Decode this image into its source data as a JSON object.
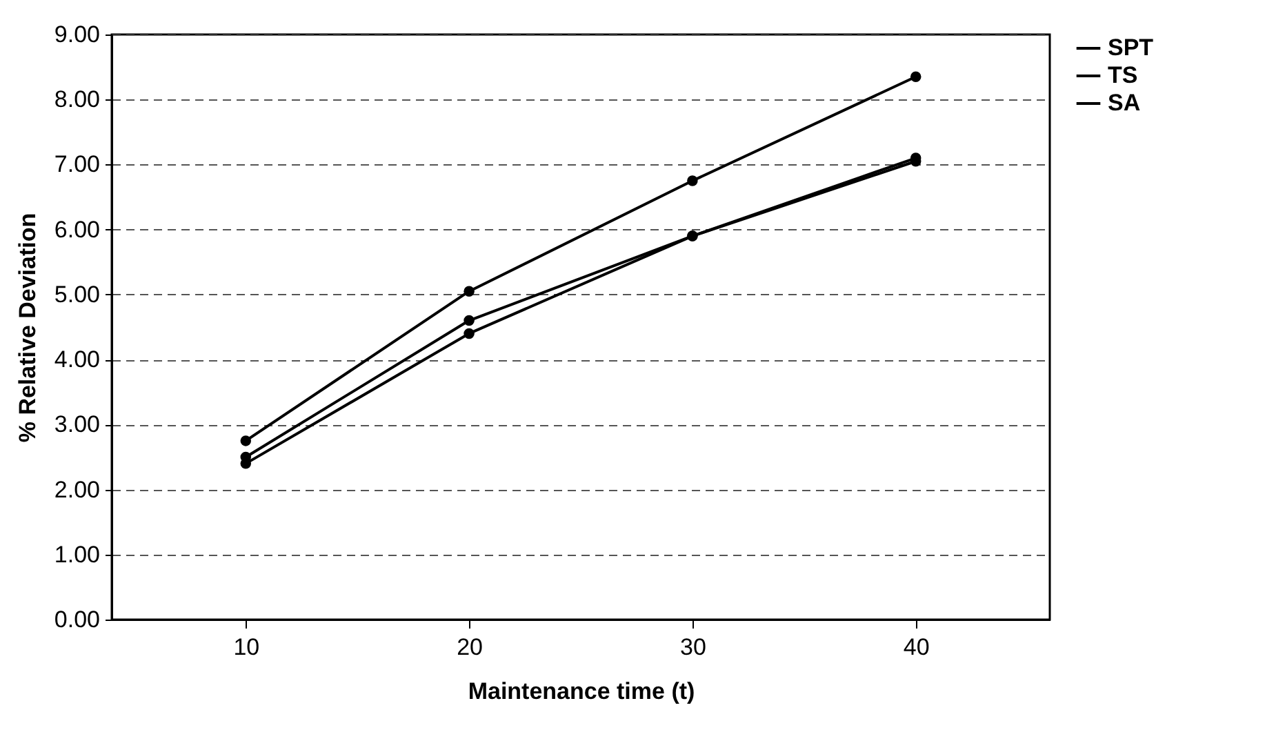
{
  "chart_data": {
    "type": "line",
    "xlabel": "Maintenance time (t)",
    "ylabel": "% Relative Deviation",
    "x": [
      10,
      20,
      30,
      40
    ],
    "xlim": [
      4,
      46
    ],
    "xticks": [
      10,
      20,
      30,
      40
    ],
    "ylim": [
      0,
      9
    ],
    "yticks": [
      {
        "value": 0,
        "label": "0.00"
      },
      {
        "value": 1,
        "label": "1.00"
      },
      {
        "value": 2,
        "label": "2.00"
      },
      {
        "value": 3,
        "label": "3.00"
      },
      {
        "value": 4,
        "label": "4.00"
      },
      {
        "value": 5,
        "label": "5.00"
      },
      {
        "value": 6,
        "label": "6.00"
      },
      {
        "value": 7,
        "label": "7.00"
      },
      {
        "value": 8,
        "label": "8.00"
      },
      {
        "value": 9,
        "label": "9.00"
      }
    ],
    "grid": "y",
    "legend": "right",
    "marker": "circle",
    "line_style": "solid",
    "series": [
      {
        "name": "SPT",
        "color": "#000000",
        "values": [
          2.75,
          5.05,
          6.75,
          8.35
        ]
      },
      {
        "name": "TS",
        "color": "#000000",
        "values": [
          2.5,
          4.6,
          5.9,
          7.1
        ]
      },
      {
        "name": "SA",
        "color": "#000000",
        "values": [
          2.4,
          4.4,
          5.9,
          7.05
        ]
      }
    ]
  }
}
